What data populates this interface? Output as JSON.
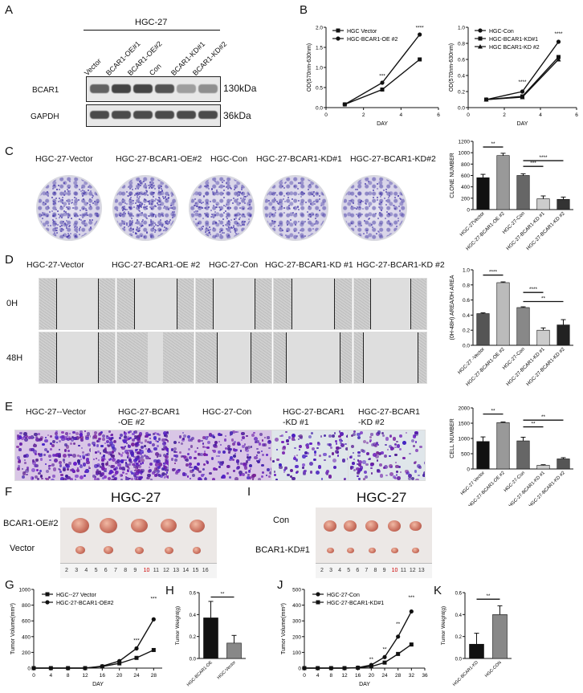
{
  "panels": {
    "A": "A",
    "B": "B",
    "C": "C",
    "D": "D",
    "E": "E",
    "F": "F",
    "I": "I",
    "G": "G",
    "H": "H",
    "J": "J",
    "K": "K"
  },
  "blot": {
    "cell_line": "HGC-27",
    "lanes": [
      "Vector",
      "BCAR1-OE#1",
      "BCAR1-OE#2",
      "Con",
      "BCAR1-KD#1",
      "BCAR1-KD#2"
    ],
    "rows": [
      {
        "protein": "BCAR1",
        "size": "130kDa",
        "intensity": [
          0.75,
          0.95,
          0.95,
          0.85,
          0.35,
          0.45
        ]
      },
      {
        "protein": "GAPDH",
        "size": "36kDa",
        "intensity": [
          0.9,
          0.9,
          0.9,
          0.9,
          0.9,
          0.9
        ]
      }
    ]
  },
  "colony": {
    "labels": [
      "HGC-27-Vector",
      "HGC-27-BCAR1-OE#2",
      "HGC-Con",
      "HGC-27-BCAR1-KD#1",
      "HGC-27-BCAR1-KD#2"
    ],
    "density": [
      0.55,
      0.9,
      0.6,
      0.25,
      0.2
    ]
  },
  "wound": {
    "labels": [
      "HGC-27-Vector",
      "HGC-27-BCAR1-OE #2",
      "HGC-27-Con",
      "HGC-27-BCAR1-KD #1",
      "HGC-27-BCAR1-KD #2"
    ],
    "rows": [
      "0H",
      "48H"
    ],
    "gap_48h": [
      0.55,
      0.2,
      0.45,
      0.7,
      0.75
    ]
  },
  "transwell": {
    "labels": [
      [
        "HGC-27--Vector"
      ],
      [
        "HGC-27-BCAR1",
        "-OE #2"
      ],
      [
        "HGC-27-Con"
      ],
      [
        "HGC-27-BCAR1",
        "-KD #1"
      ],
      [
        "HGC-27-BCAR1",
        "-KD #2"
      ]
    ],
    "density": [
      0.55,
      0.95,
      0.6,
      0.3,
      0.35
    ]
  },
  "tumors": {
    "F": {
      "title": "HGC-27",
      "rows": [
        "BCAR1-OE#2",
        "Vector"
      ],
      "ruler": [
        "2",
        "3",
        "4",
        "5",
        "6",
        "7",
        "8",
        "9",
        "10",
        "11",
        "12",
        "13",
        "14",
        "15",
        "16"
      ],
      "sizes": [
        [
          22,
          22,
          21,
          20,
          19
        ],
        [
          12,
          12,
          11,
          11,
          10
        ]
      ]
    },
    "I": {
      "title": "HGC-27",
      "rows": [
        "Con",
        "BCAR1-KD#1"
      ],
      "ruler": [
        "2",
        "3",
        "4",
        "5",
        "6",
        "7",
        "8",
        "9",
        "10",
        "11",
        "12",
        "13"
      ],
      "sizes": [
        [
          16,
          16,
          16,
          16,
          15
        ],
        [
          9,
          9,
          9,
          9,
          9
        ]
      ]
    }
  },
  "chart_data": [
    {
      "id": "B-left",
      "type": "line",
      "ylabel": "OD(570nm-630nm)",
      "xlabel": "DAY",
      "xlim": [
        0,
        6
      ],
      "ylim": [
        0,
        2.0
      ],
      "xticks": [
        0,
        2,
        4,
        6
      ],
      "yticks": [
        0.0,
        0.5,
        1.0,
        1.5,
        2.0
      ],
      "x": [
        1,
        3,
        5
      ],
      "series": [
        {
          "name": "HGC Vector",
          "values": [
            0.08,
            0.45,
            1.2
          ],
          "marker": "square"
        },
        {
          "name": "HGC-BCAR1-OE #2",
          "values": [
            0.08,
            0.62,
            1.82
          ],
          "marker": "circle"
        }
      ],
      "annotations": [
        {
          "x": 3,
          "y": 0.75,
          "text": "***"
        },
        {
          "x": 5,
          "y": 1.95,
          "text": "****"
        }
      ],
      "legend": "top-left"
    },
    {
      "id": "B-right",
      "type": "line",
      "ylabel": "OD(570nm-630nm)",
      "xlabel": "DAY",
      "xlim": [
        0,
        6
      ],
      "ylim": [
        0,
        1.0
      ],
      "xticks": [
        0,
        2,
        4,
        6
      ],
      "yticks": [
        0.0,
        0.2,
        0.4,
        0.6,
        0.8,
        1.0
      ],
      "x": [
        1,
        3,
        5
      ],
      "series": [
        {
          "name": "HGC-Con",
          "values": [
            0.1,
            0.2,
            0.82
          ],
          "marker": "circle"
        },
        {
          "name": "HGC-BCAR1-KD#1",
          "values": [
            0.1,
            0.14,
            0.63
          ],
          "marker": "square"
        },
        {
          "name": "HGC BCAR1-KD #2",
          "values": [
            0.1,
            0.13,
            0.6
          ],
          "marker": "triangle"
        }
      ],
      "annotations": [
        {
          "x": 3,
          "y": 0.3,
          "text": "****"
        },
        {
          "x": 5,
          "y": 0.9,
          "text": "****"
        }
      ],
      "legend": "top-left"
    },
    {
      "id": "C-bar",
      "type": "bar",
      "ylabel": "CLONE NUMBER",
      "ylim": [
        0,
        1200
      ],
      "yticks": [
        0,
        200,
        400,
        600,
        800,
        1000,
        1200
      ],
      "categories": [
        "HGC-27Vector",
        "HGC-27-BCAR1-OE #2",
        "HGC-27-Con",
        "HGC-27-BCAR1-KD #1",
        "HGC-27-BCAR1-KD #2"
      ],
      "values": [
        560,
        950,
        600,
        190,
        180
      ],
      "errors": [
        60,
        40,
        30,
        50,
        40
      ],
      "colors": [
        "#111111",
        "#999999",
        "#666666",
        "#cccccc",
        "#333333"
      ],
      "significance": [
        {
          "from": 0,
          "to": 1,
          "y": 1100,
          "text": "**"
        },
        {
          "from": 2,
          "to": 3,
          "y": 760,
          "text": "***"
        },
        {
          "from": 2,
          "to": 4,
          "y": 860,
          "text": "****"
        }
      ]
    },
    {
      "id": "D-bar",
      "type": "bar",
      "ylabel": "(0H-48H) AREA/0H AREA",
      "ylim": [
        0,
        1.0
      ],
      "yticks": [
        0.0,
        0.2,
        0.4,
        0.6,
        0.8,
        1.0
      ],
      "categories": [
        "HGC-27 -Vector",
        "HGC-27-BCAR1-OE #2",
        "HGC-27-Con",
        "HGC-27-BCAR1-KD #1",
        "HGC-27-BCAR1-KD #2"
      ],
      "values": [
        0.42,
        0.83,
        0.5,
        0.2,
        0.27
      ],
      "errors": [
        0.01,
        0.01,
        0.01,
        0.03,
        0.07
      ],
      "colors": [
        "#555555",
        "#bbbbbb",
        "#888888",
        "#cccccc",
        "#222222"
      ],
      "significance": [
        {
          "from": 0,
          "to": 1,
          "y": 0.93,
          "text": "****"
        },
        {
          "from": 2,
          "to": 3,
          "y": 0.7,
          "text": "****"
        },
        {
          "from": 2,
          "to": 4,
          "y": 0.58,
          "text": "**"
        }
      ]
    },
    {
      "id": "E-bar",
      "type": "bar",
      "ylabel": "CELL NUMBER",
      "ylim": [
        0,
        2000
      ],
      "yticks": [
        0,
        500,
        1000,
        1500,
        2000
      ],
      "categories": [
        "HGC-27 Vector",
        "HGC-27-BCAR1-OE #2",
        "HGC-27-Con",
        "HGC-27-BCAR1-KD #1",
        "HGC-27-BCAR1-KD #2"
      ],
      "values": [
        900,
        1520,
        920,
        120,
        330
      ],
      "errors": [
        150,
        20,
        120,
        20,
        40
      ],
      "colors": [
        "#111111",
        "#999999",
        "#666666",
        "#cccccc",
        "#555555"
      ],
      "significance": [
        {
          "from": 0,
          "to": 1,
          "y": 1800,
          "text": "**"
        },
        {
          "from": 2,
          "to": 3,
          "y": 1380,
          "text": "**"
        },
        {
          "from": 2,
          "to": 4,
          "y": 1600,
          "text": "**"
        }
      ]
    },
    {
      "id": "G",
      "type": "line",
      "ylabel": "Tumor Volume(mm³)",
      "xlabel": "DAY",
      "xlim": [
        0,
        30
      ],
      "ylim": [
        0,
        1000
      ],
      "xticks": [
        0,
        4,
        8,
        12,
        16,
        20,
        24,
        28
      ],
      "yticks": [
        0,
        200,
        400,
        600,
        800,
        1000
      ],
      "x": [
        0,
        4,
        8,
        12,
        16,
        20,
        24,
        28
      ],
      "series": [
        {
          "name": "HGC--27 Vector",
          "values": [
            0,
            0,
            0,
            0,
            20,
            60,
            130,
            230
          ],
          "marker": "square"
        },
        {
          "name": "HGC-27-BCAR1-OE#2",
          "values": [
            0,
            0,
            0,
            0,
            25,
            90,
            250,
            620
          ],
          "marker": "circle"
        }
      ],
      "annotations": [
        {
          "x": 24,
          "y": 330,
          "text": "***"
        },
        {
          "x": 28,
          "y": 860,
          "text": "***"
        }
      ],
      "legend": "top-left"
    },
    {
      "id": "H",
      "type": "bar",
      "ylabel": "Tumor Weight(g)",
      "ylim": [
        0,
        0.6
      ],
      "yticks": [
        0.0,
        0.2,
        0.4,
        0.6
      ],
      "categories": [
        "HGC-BCAR1-OE",
        "HGC-Vector"
      ],
      "values": [
        0.37,
        0.14
      ],
      "errors": [
        0.15,
        0.07
      ],
      "colors": [
        "#111111",
        "#888888"
      ],
      "significance": [
        {
          "from": 0,
          "to": 1,
          "y": 0.56,
          "text": "**"
        }
      ]
    },
    {
      "id": "J",
      "type": "line",
      "ylabel": "Tumor Volume(mm³)",
      "xlabel": "DAY",
      "xlim": [
        0,
        36
      ],
      "ylim": [
        0,
        500
      ],
      "xticks": [
        0,
        4,
        8,
        12,
        16,
        20,
        24,
        28,
        32,
        36
      ],
      "yticks": [
        0,
        100,
        200,
        300,
        400,
        500
      ],
      "x": [
        0,
        4,
        8,
        12,
        16,
        20,
        24,
        28,
        32
      ],
      "series": [
        {
          "name": "HGC-27-Con",
          "values": [
            0,
            0,
            0,
            0,
            3,
            20,
            70,
            200,
            360
          ],
          "marker": "circle"
        },
        {
          "name": "HGC-27-BCAR1-KD#1",
          "values": [
            0,
            0,
            0,
            0,
            2,
            10,
            35,
            90,
            150
          ],
          "marker": "square"
        }
      ],
      "annotations": [
        {
          "x": 20,
          "y": 45,
          "text": "**"
        },
        {
          "x": 24,
          "y": 110,
          "text": "**"
        },
        {
          "x": 28,
          "y": 270,
          "text": "**"
        },
        {
          "x": 32,
          "y": 440,
          "text": "***"
        }
      ],
      "legend": "top-left"
    },
    {
      "id": "K",
      "type": "bar",
      "ylabel": "Tumor Weight(g)",
      "ylim": [
        0,
        0.6
      ],
      "yticks": [
        0.0,
        0.2,
        0.4,
        0.6
      ],
      "categories": [
        "HGC-BCAR1-KD",
        "HGC-CON"
      ],
      "values": [
        0.13,
        0.4
      ],
      "errors": [
        0.1,
        0.08
      ],
      "colors": [
        "#111111",
        "#888888"
      ],
      "significance": [
        {
          "from": 0,
          "to": 1,
          "y": 0.54,
          "text": "**"
        }
      ]
    }
  ]
}
